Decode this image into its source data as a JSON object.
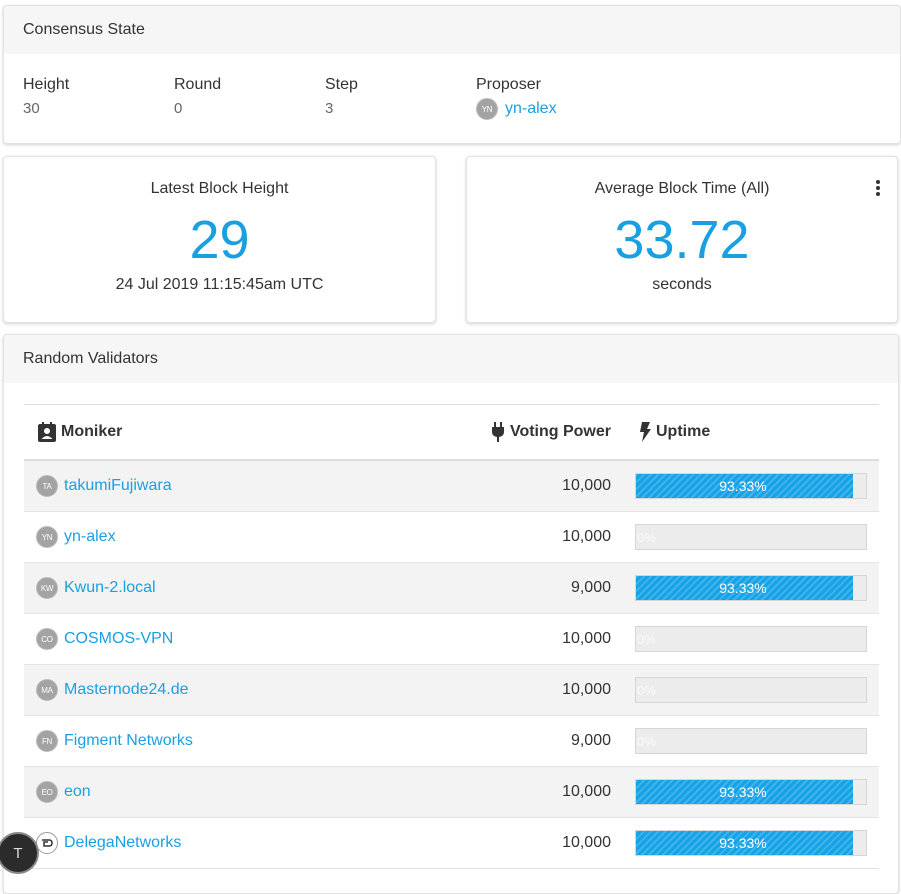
{
  "consensus": {
    "title": "Consensus State",
    "height_label": "Height",
    "height_value": "30",
    "round_label": "Round",
    "round_value": "0",
    "step_label": "Step",
    "step_value": "3",
    "proposer_label": "Proposer",
    "proposer_initials": "YN",
    "proposer_name": "yn-alex"
  },
  "latest_block": {
    "title": "Latest Block Height",
    "value": "29",
    "time": "24 Jul 2019 11:15:45am UTC"
  },
  "avg_block": {
    "title": "Average Block Time (All)",
    "value": "33.72",
    "unit": "seconds"
  },
  "validators": {
    "title": "Random Validators",
    "col_moniker": "Moniker",
    "col_power": "Voting Power",
    "col_uptime": "Uptime",
    "rows": [
      {
        "initials": "TA",
        "name": "takumiFujiwara",
        "power": "10,000",
        "uptime": "93.33%",
        "uptime_pct": 93.33
      },
      {
        "initials": "YN",
        "name": "yn-alex",
        "power": "10,000",
        "uptime": "0%",
        "uptime_pct": 0
      },
      {
        "initials": "KW",
        "name": "Kwun-2.local",
        "power": "9,000",
        "uptime": "93.33%",
        "uptime_pct": 93.33
      },
      {
        "initials": "CO",
        "name": "COSMOS-VPN",
        "power": "10,000",
        "uptime": "0%",
        "uptime_pct": 0
      },
      {
        "initials": "MA",
        "name": "Masternode24.de",
        "power": "10,000",
        "uptime": "0%",
        "uptime_pct": 0
      },
      {
        "initials": "FN",
        "name": "Figment Networks",
        "power": "9,000",
        "uptime": "0%",
        "uptime_pct": 0
      },
      {
        "initials": "EO",
        "name": "eon",
        "power": "10,000",
        "uptime": "93.33%",
        "uptime_pct": 93.33
      },
      {
        "initials": "",
        "name": "DelegaNetworks",
        "power": "10,000",
        "uptime": "93.33%",
        "uptime_pct": 93.33
      }
    ]
  },
  "fab": {
    "letter": "T"
  },
  "colors": {
    "accent": "#1aa0e0",
    "bar": "#16a2e6"
  },
  "icons": {
    "moniker": "contact-card-icon",
    "power": "plug-icon",
    "uptime": "lightning-icon",
    "menu": "more-vertical-icon"
  }
}
